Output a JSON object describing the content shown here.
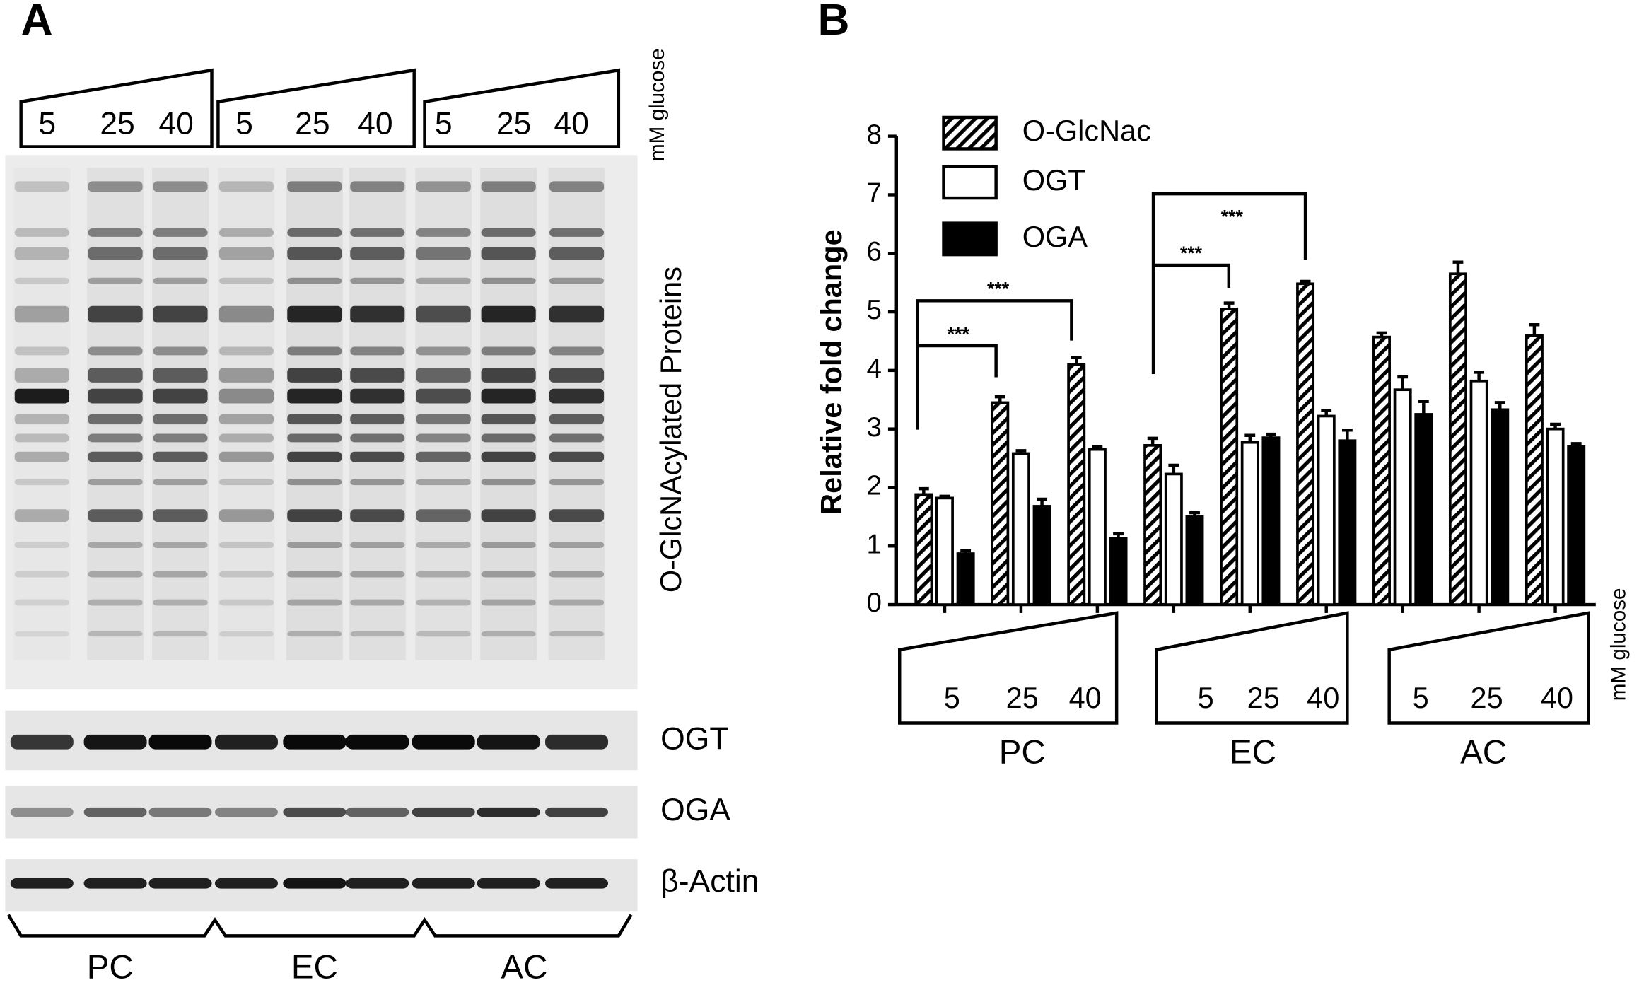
{
  "panel_a": {
    "label": "A",
    "lanes": [
      "5",
      "25",
      "40",
      "5",
      "25",
      "40",
      "5",
      "25",
      "40"
    ],
    "concentration_label": "mM glucose",
    "blot_labels": [
      "O-GlcNAcylated Proteins",
      "OGT",
      "OGA",
      "β-Actin"
    ],
    "groups": [
      "PC",
      "EC",
      "AC"
    ]
  },
  "chart_data": {
    "type": "bar",
    "panel_label": "B",
    "y_label": "Relative fold change",
    "categories": [
      "5",
      "25",
      "40",
      "5",
      "25",
      "40",
      "5",
      "25",
      "40"
    ],
    "groups": [
      "PC",
      "EC",
      "AC"
    ],
    "x_unit_label": "mM glucose",
    "series": [
      {
        "name": "O-GlcNac",
        "color": "#000000",
        "pattern": "hatch",
        "values": [
          1.88,
          3.45,
          4.1,
          2.72,
          5.05,
          5.48,
          4.57,
          5.65,
          4.6
        ],
        "errors": [
          0.1,
          0.1,
          0.12,
          0.12,
          0.1,
          0.04,
          0.07,
          0.2,
          0.18
        ]
      },
      {
        "name": "OGT",
        "color": "#000000",
        "pattern": "none",
        "values": [
          1.82,
          2.58,
          2.65,
          2.23,
          2.77,
          3.22,
          3.67,
          3.82,
          3.0
        ],
        "errors": [
          0.03,
          0.05,
          0.05,
          0.15,
          0.12,
          0.1,
          0.22,
          0.15,
          0.08
        ]
      },
      {
        "name": "OGA",
        "color": "#000000",
        "pattern": "solid",
        "values": [
          0.87,
          1.68,
          1.13,
          1.5,
          2.85,
          2.8,
          3.25,
          3.33,
          2.7
        ],
        "errors": [
          0.05,
          0.12,
          0.08,
          0.07,
          0.06,
          0.18,
          0.22,
          0.12,
          0.05
        ]
      }
    ],
    "annotations": [
      "***",
      "***",
      "***",
      "***"
    ],
    "ylim": [
      0,
      8
    ],
    "yticks": [
      0,
      1,
      2,
      3,
      4,
      5,
      6,
      7,
      8
    ],
    "legend": "top-left"
  }
}
